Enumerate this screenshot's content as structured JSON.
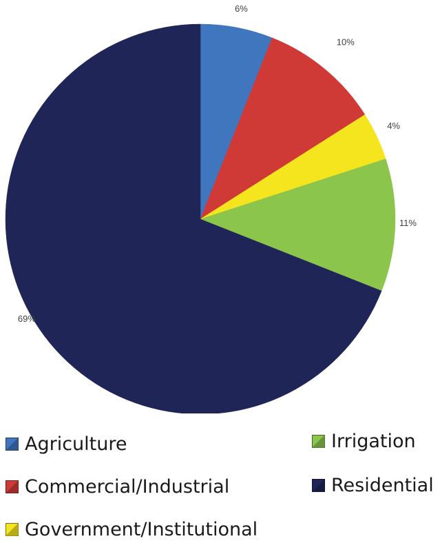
{
  "chart_data": {
    "type": "pie",
    "title": "",
    "start_angle_deg": 0,
    "direction": "clockwise",
    "slices": [
      {
        "label": "Agriculture",
        "value": 6,
        "display": "6%",
        "color": "#3f76bd"
      },
      {
        "label": "Commercial/Industrial",
        "value": 10,
        "display": "10%",
        "color": "#cf3a36"
      },
      {
        "label": "Government/Institutional",
        "value": 4,
        "display": "4%",
        "color": "#f5e51e"
      },
      {
        "label": "Irrigation",
        "value": 11,
        "display": "11%",
        "color": "#8cc54c"
      },
      {
        "label": "Residential",
        "value": 69,
        "display": "69%",
        "color": "#1f2557"
      }
    ],
    "legend": {
      "placement": "bottom",
      "columns": [
        [
          "Agriculture",
          "Commercial/Industrial",
          "Government/Institutional"
        ],
        [
          "Irrigation",
          "Residential"
        ]
      ]
    }
  }
}
